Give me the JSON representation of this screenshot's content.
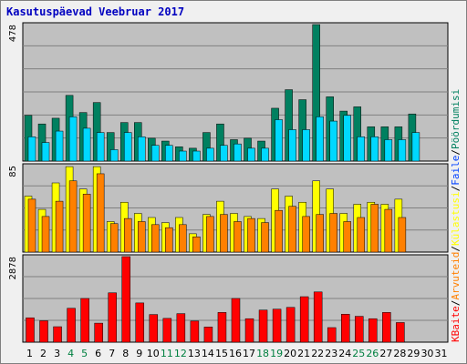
{
  "chart_data": {
    "type": "bar",
    "title": "Kasutuspäevad Veebruar 2017",
    "x": [
      "1",
      "2",
      "3",
      "4",
      "5",
      "6",
      "7",
      "8",
      "9",
      "10",
      "11",
      "12",
      "13",
      "14",
      "15",
      "16",
      "17",
      "18",
      "19",
      "20",
      "21",
      "22",
      "23",
      "24",
      "25",
      "26",
      "27",
      "28",
      "29",
      "30",
      "31"
    ],
    "weekend_days": [
      "4",
      "5",
      "11",
      "12",
      "18",
      "19",
      "25",
      "26"
    ],
    "colors": {
      "weekday_label": "#000000",
      "weekend_label": "#008040",
      "panel_bg": "#c0c0c0",
      "frame_bg": "#f0f0f0",
      "grid": "#808080",
      "title": "#0000c0"
    },
    "panels": [
      {
        "id": "top",
        "ymax_label": "478",
        "ymax": 478,
        "series": [
          {
            "name": "Pöördumisi",
            "color": "#008060",
            "values": [
              160,
              130,
              150,
              230,
              170,
              205,
              100,
              135,
              135,
              80,
              70,
              50,
              45,
              100,
              130,
              75,
              80,
              70,
              185,
              250,
              215,
              478,
              225,
              175,
              190,
              120,
              120,
              120,
              165,
              0,
              0
            ]
          },
          {
            "name": "Faile",
            "color": "#00d8ff",
            "values": [
              85,
              65,
              105,
              155,
              115,
              100,
              40,
              100,
              85,
              55,
              55,
              35,
              35,
              45,
              55,
              60,
              45,
              45,
              145,
              110,
              110,
              155,
              140,
              160,
              85,
              85,
              75,
              75,
              100,
              0,
              0
            ]
          }
        ]
      },
      {
        "id": "middle",
        "ymax_label": "85",
        "ymax": 85,
        "series": [
          {
            "name": "Külastusi",
            "color": "#ffff00",
            "values": [
              55,
              42,
              68,
              84,
              62,
              84,
              30,
              49,
              38,
              34,
              29,
              34,
              18,
              37,
              50,
              38,
              35,
              33,
              62,
              55,
              49,
              70,
              62,
              38,
              47,
              49,
              47,
              52,
              0,
              0,
              0
            ]
          },
          {
            "name": "Arvuteid",
            "color": "#ff8000",
            "values": [
              52,
              35,
              50,
              70,
              57,
              77,
              28,
              33,
              30,
              27,
              24,
              27,
              15,
              35,
              37,
              30,
              33,
              29,
              41,
              45,
              35,
              37,
              38,
              30,
              34,
              47,
              42,
              34,
              0,
              0,
              0
            ]
          }
        ]
      },
      {
        "id": "bottom",
        "ymax_label": "2878",
        "ymax": 2878,
        "series": [
          {
            "name": "KBaite",
            "color": "#ff0000",
            "values": [
              820,
              720,
              520,
              1140,
              1470,
              640,
              1660,
              2878,
              1320,
              930,
              800,
              960,
              710,
              510,
              1000,
              1470,
              790,
              1080,
              1110,
              1170,
              1530,
              1690,
              490,
              940,
              870,
              790,
              1000,
              660,
              0,
              0,
              0
            ]
          }
        ]
      }
    ],
    "legend": [
      {
        "text": "Pöördumisi",
        "color": "#008060"
      },
      {
        "text": "/",
        "color": "#000000"
      },
      {
        "text": "Faile",
        "color": "#0040ff"
      },
      {
        "text": "/",
        "color": "#000000"
      },
      {
        "text": "Külastusi",
        "color": "#ffff00"
      },
      {
        "text": "/",
        "color": "#000000"
      },
      {
        "text": "Arvuteid",
        "color": "#ff8000"
      },
      {
        "text": "/",
        "color": "#000000"
      },
      {
        "text": "KBaite",
        "color": "#ff0000"
      }
    ]
  }
}
